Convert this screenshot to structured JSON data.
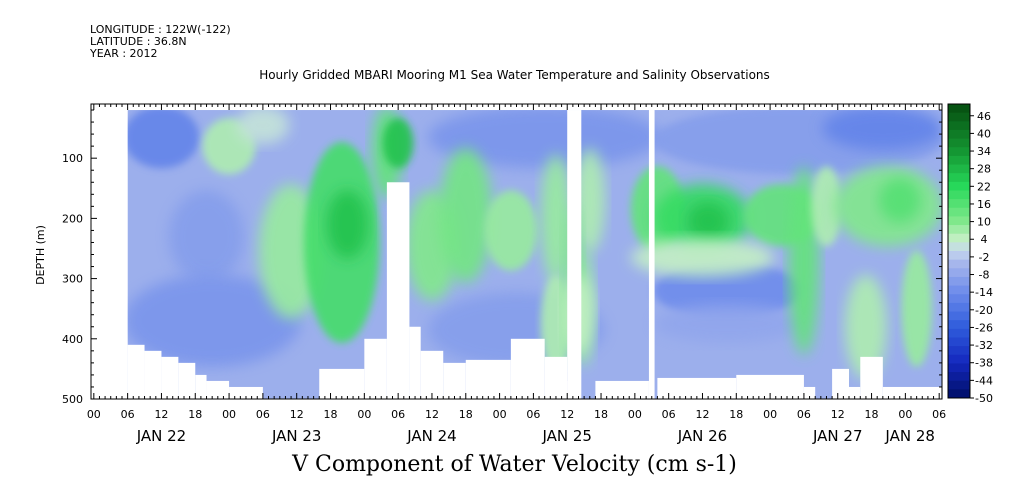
{
  "header": {
    "longitude": "LONGITUDE : 122W(-122)",
    "latitude": "LATITUDE : 36.8N",
    "year": "YEAR : 2012",
    "title": "Hourly Gridded MBARI Mooring M1 Sea Water Temperature and Salinity Observations"
  },
  "footer": {
    "variable_label": "V Component of Water Velocity (cm s-1)"
  },
  "chart_data": {
    "type": "heatmap",
    "title": "Hourly Gridded MBARI Mooring M1 Sea Water Temperature and Salinity Observations",
    "subtitle": "V Component of Water Velocity (cm s-1)",
    "xlabel": "",
    "ylabel": "DEPTH (m)",
    "x_hour_ticks": [
      "00",
      "06",
      "12",
      "18",
      "00",
      "06",
      "12",
      "18",
      "00",
      "06",
      "12",
      "18",
      "00",
      "06",
      "12",
      "18",
      "00",
      "06",
      "12",
      "18",
      "00",
      "06",
      "12",
      "18",
      "00",
      "06"
    ],
    "x_day_labels": [
      "JAN 22",
      "JAN 23",
      "JAN 24",
      "JAN 25",
      "JAN 26",
      "JAN 27",
      "JAN 28"
    ],
    "x_range_hours_from_jan22_00": [
      -0.5,
      150.5
    ],
    "ylim": [
      500,
      10
    ],
    "y_ticks": [
      100,
      200,
      300,
      400,
      500
    ],
    "colorbar": {
      "labels": [
        46,
        40,
        34,
        28,
        22,
        16,
        10,
        4,
        -2,
        -8,
        -14,
        -20,
        -26,
        -32,
        -38,
        -44,
        -50
      ],
      "range": [
        -50,
        50
      ],
      "colors": {
        "strong_negative": "#000e66",
        "negative": "#2f5cdc",
        "weak_negative": "#a8b8ec",
        "weak_positive": "#c4f0c4",
        "positive": "#27d85a",
        "strong_positive": "#064d10"
      }
    },
    "data_gaps": [
      {
        "from": "JAN 24 ~18h",
        "to": "JAN 24 ~23h",
        "note": "no data"
      },
      {
        "from": "JAN 25 ~14h",
        "to": "JAN 25 ~15h",
        "note": "no data"
      }
    ],
    "regions": [
      {
        "time_hours": [
          6,
          150
        ],
        "depth_m": [
          20,
          100
        ],
        "value": -8
      },
      {
        "time_hours": [
          38,
          50
        ],
        "depth_m": [
          100,
          400
        ],
        "value": 16
      },
      {
        "time_hours": [
          52,
          56
        ],
        "depth_m": [
          20,
          100
        ],
        "value": 22
      },
      {
        "time_hours": [
          96,
          118
        ],
        "depth_m": [
          150,
          260
        ],
        "value": 16
      },
      {
        "time_hours": [
          124,
          128
        ],
        "depth_m": [
          120,
          420
        ],
        "value": 10
      },
      {
        "time_hours": [
          6,
          30
        ],
        "depth_m": [
          300,
          450
        ],
        "value": -14
      }
    ],
    "grid": false
  }
}
